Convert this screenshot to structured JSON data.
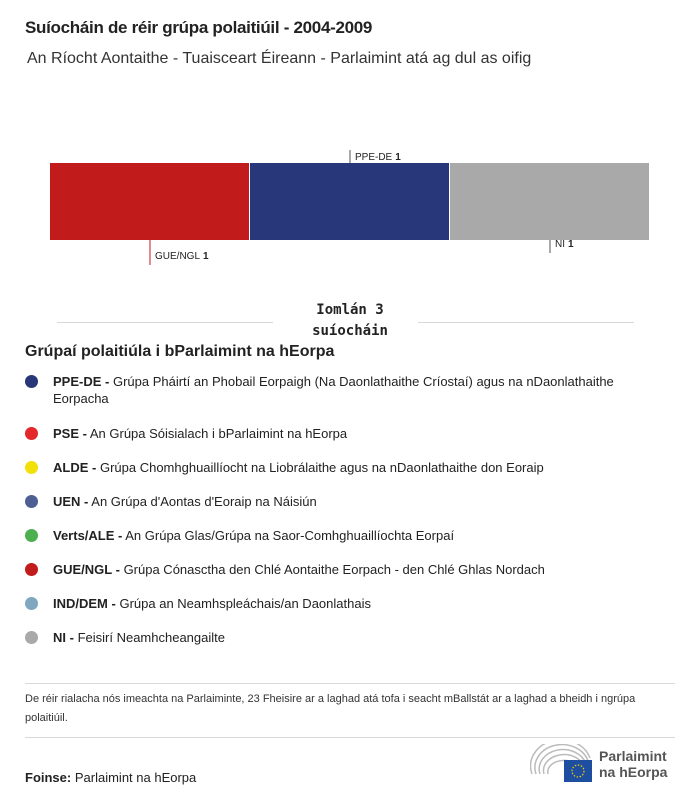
{
  "title": "Suíocháin de réir grúpa polaitiúil - 2004-2009",
  "subtitle": "An Ríocht Aontaithe - Tuaisceart Éireann - Parlaimint atá ag dul as oifig",
  "chart_data": {
    "type": "bar",
    "orientation": "stacked-horizontal",
    "categories": [
      "GUE/NGL",
      "PPE-DE",
      "NI"
    ],
    "values": [
      1,
      1,
      1
    ],
    "colors": [
      "#c21b1b",
      "#283779",
      "#a9a9a9"
    ],
    "total": 3
  },
  "total_label": {
    "line1": "Iomlán 3",
    "line2": "suíocháin"
  },
  "legend": {
    "title": "Grúpaí polaitiúla i bParlaimint na hEorpa",
    "items": [
      {
        "abbr": "PPE-DE -",
        "desc": "Grúpa Pháirtí an Phobail Eorpaigh (Na Daonlathaithe Críostaí) agus na nDaonlathaithe Eorpacha",
        "color": "#283779"
      },
      {
        "abbr": "PSE -",
        "desc": "An Grúpa Sóisialach i bParlaimint na hEorpa",
        "color": "#e4272a"
      },
      {
        "abbr": "ALDE -",
        "desc": "Grúpa Chomhghuaillíocht na Liobrálaithe agus na nDaonlathaithe don Eoraip",
        "color": "#f1e00a"
      },
      {
        "abbr": "UEN -",
        "desc": "An Grúpa d'Aontas d'Eoraip na Náisiún",
        "color": "#4d5f93"
      },
      {
        "abbr": "Verts/ALE -",
        "desc": "An Grúpa Glas/Grúpa na Saor-Comhghuaillíochta Eorpaí",
        "color": "#4caf50"
      },
      {
        "abbr": "GUE/NGL -",
        "desc": "Grúpa Cónasctha den Chlé Aontaithe Eorpach - den Chlé Ghlas Nordach",
        "color": "#c21b1b"
      },
      {
        "abbr": "IND/DEM -",
        "desc": "Grúpa an Neamhspleáchais/an Daonlathais",
        "color": "#7fa7bf"
      },
      {
        "abbr": "NI -",
        "desc": "Feisirí Neamhcheangailte",
        "color": "#a9a9a9"
      }
    ]
  },
  "note": "De réir rialacha nós imeachta na Parlaiminte, 23 Fheisire ar a laghad atá tofa i seacht mBallstát ar a laghad a bheidh i ngrúpa polaitiúil.",
  "source": {
    "label": "Foinse:",
    "value": "Parlaimint na hEorpa"
  },
  "logo": {
    "line1": "Parlaimint",
    "line2": "na hEorpa"
  }
}
